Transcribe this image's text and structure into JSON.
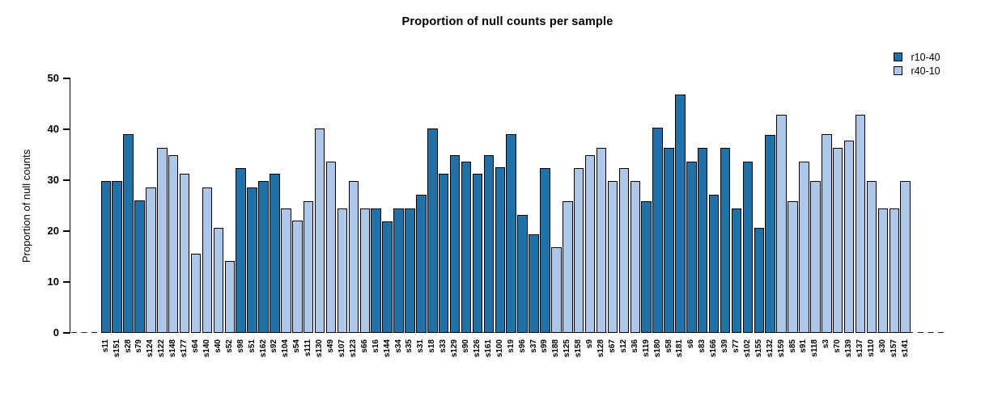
{
  "chart_data": {
    "type": "bar",
    "title": "Proportion of null counts per sample",
    "xlabel": "",
    "ylabel": "Proportion of null counts",
    "ylim": [
      0,
      50
    ],
    "yticks": [
      0,
      10,
      20,
      30,
      40,
      50
    ],
    "grid": false,
    "zero_line_style": "dashed",
    "x_tick_rotation": 90,
    "legend_position": "top-right",
    "legend": [
      {
        "label": "r10-40",
        "series": "r10-40"
      },
      {
        "label": "r40-10",
        "series": "r40-10"
      }
    ],
    "series_colors": {
      "r10-40": "#2171a9",
      "r40-10": "#aec7e8"
    },
    "bar_border_color": "#000000",
    "bars": [
      {
        "sample": "s11",
        "series": "r10-40",
        "value": 29.8
      },
      {
        "sample": "s151",
        "series": "r10-40",
        "value": 29.8
      },
      {
        "sample": "s28",
        "series": "r10-40",
        "value": 39.0
      },
      {
        "sample": "s79",
        "series": "r10-40",
        "value": 26.0
      },
      {
        "sample": "s124",
        "series": "r40-10",
        "value": 28.6
      },
      {
        "sample": "s122",
        "series": "r40-10",
        "value": 36.4
      },
      {
        "sample": "s148",
        "series": "r40-10",
        "value": 35.0
      },
      {
        "sample": "s177",
        "series": "r40-10",
        "value": 31.2
      },
      {
        "sample": "s64",
        "series": "r40-10",
        "value": 15.5
      },
      {
        "sample": "s140",
        "series": "r40-10",
        "value": 28.6
      },
      {
        "sample": "s40",
        "series": "r40-10",
        "value": 20.7
      },
      {
        "sample": "s52",
        "series": "r40-10",
        "value": 14.2
      },
      {
        "sample": "s98",
        "series": "r10-40",
        "value": 32.4
      },
      {
        "sample": "s51",
        "series": "r10-40",
        "value": 28.6
      },
      {
        "sample": "s162",
        "series": "r10-40",
        "value": 29.8
      },
      {
        "sample": "s92",
        "series": "r10-40",
        "value": 31.2
      },
      {
        "sample": "s104",
        "series": "r40-10",
        "value": 24.5
      },
      {
        "sample": "s54",
        "series": "r40-10",
        "value": 22.0
      },
      {
        "sample": "s111",
        "series": "r40-10",
        "value": 25.9
      },
      {
        "sample": "s130",
        "series": "r40-10",
        "value": 40.2
      },
      {
        "sample": "s49",
        "series": "r40-10",
        "value": 33.7
      },
      {
        "sample": "s107",
        "series": "r40-10",
        "value": 24.5
      },
      {
        "sample": "s123",
        "series": "r40-10",
        "value": 29.8
      },
      {
        "sample": "s66",
        "series": "r40-10",
        "value": 24.5
      },
      {
        "sample": "s16",
        "series": "r10-40",
        "value": 24.5
      },
      {
        "sample": "s144",
        "series": "r10-40",
        "value": 21.9
      },
      {
        "sample": "s34",
        "series": "r10-40",
        "value": 24.5
      },
      {
        "sample": "s35",
        "series": "r10-40",
        "value": 24.5
      },
      {
        "sample": "s31",
        "series": "r10-40",
        "value": 27.1
      },
      {
        "sample": "s18",
        "series": "r10-40",
        "value": 40.2
      },
      {
        "sample": "s33",
        "series": "r10-40",
        "value": 31.2
      },
      {
        "sample": "s129",
        "series": "r10-40",
        "value": 34.9
      },
      {
        "sample": "s90",
        "series": "r10-40",
        "value": 33.7
      },
      {
        "sample": "s126",
        "series": "r10-40",
        "value": 31.2
      },
      {
        "sample": "s161",
        "series": "r10-40",
        "value": 34.9
      },
      {
        "sample": "s100",
        "series": "r10-40",
        "value": 32.5
      },
      {
        "sample": "s19",
        "series": "r10-40",
        "value": 39.0
      },
      {
        "sample": "s96",
        "series": "r10-40",
        "value": 23.2
      },
      {
        "sample": "s37",
        "series": "r10-40",
        "value": 19.4
      },
      {
        "sample": "s99",
        "series": "r10-40",
        "value": 32.4
      },
      {
        "sample": "s188",
        "series": "r40-10",
        "value": 16.8
      },
      {
        "sample": "s125",
        "series": "r40-10",
        "value": 25.9
      },
      {
        "sample": "s158",
        "series": "r40-10",
        "value": 32.4
      },
      {
        "sample": "s9",
        "series": "r40-10",
        "value": 34.9
      },
      {
        "sample": "s128",
        "series": "r40-10",
        "value": 36.3
      },
      {
        "sample": "s67",
        "series": "r40-10",
        "value": 29.8
      },
      {
        "sample": "s12",
        "series": "r40-10",
        "value": 32.4
      },
      {
        "sample": "s36",
        "series": "r40-10",
        "value": 29.8
      },
      {
        "sample": "s119",
        "series": "r10-40",
        "value": 25.9
      },
      {
        "sample": "s180",
        "series": "r10-40",
        "value": 40.3
      },
      {
        "sample": "s58",
        "series": "r10-40",
        "value": 36.3
      },
      {
        "sample": "s181",
        "series": "r10-40",
        "value": 46.9
      },
      {
        "sample": "s6",
        "series": "r10-40",
        "value": 33.7
      },
      {
        "sample": "s83",
        "series": "r10-40",
        "value": 36.3
      },
      {
        "sample": "s166",
        "series": "r10-40",
        "value": 27.2
      },
      {
        "sample": "s39",
        "series": "r10-40",
        "value": 36.3
      },
      {
        "sample": "s77",
        "series": "r10-40",
        "value": 24.5
      },
      {
        "sample": "s102",
        "series": "r10-40",
        "value": 33.7
      },
      {
        "sample": "s155",
        "series": "r10-40",
        "value": 20.7
      },
      {
        "sample": "s132",
        "series": "r10-40",
        "value": 38.9
      },
      {
        "sample": "s159",
        "series": "r40-10",
        "value": 42.9
      },
      {
        "sample": "s85",
        "series": "r40-10",
        "value": 25.9
      },
      {
        "sample": "s91",
        "series": "r40-10",
        "value": 33.7
      },
      {
        "sample": "s118",
        "series": "r40-10",
        "value": 29.8
      },
      {
        "sample": "s3",
        "series": "r40-10",
        "value": 39.0
      },
      {
        "sample": "s70",
        "series": "r40-10",
        "value": 36.4
      },
      {
        "sample": "s139",
        "series": "r40-10",
        "value": 37.7
      },
      {
        "sample": "s137",
        "series": "r40-10",
        "value": 42.9
      },
      {
        "sample": "s110",
        "series": "r40-10",
        "value": 29.8
      },
      {
        "sample": "s30",
        "series": "r40-10",
        "value": 24.5
      },
      {
        "sample": "s157",
        "series": "r40-10",
        "value": 24.5
      },
      {
        "sample": "s141",
        "series": "r40-10",
        "value": 29.8
      }
    ]
  }
}
